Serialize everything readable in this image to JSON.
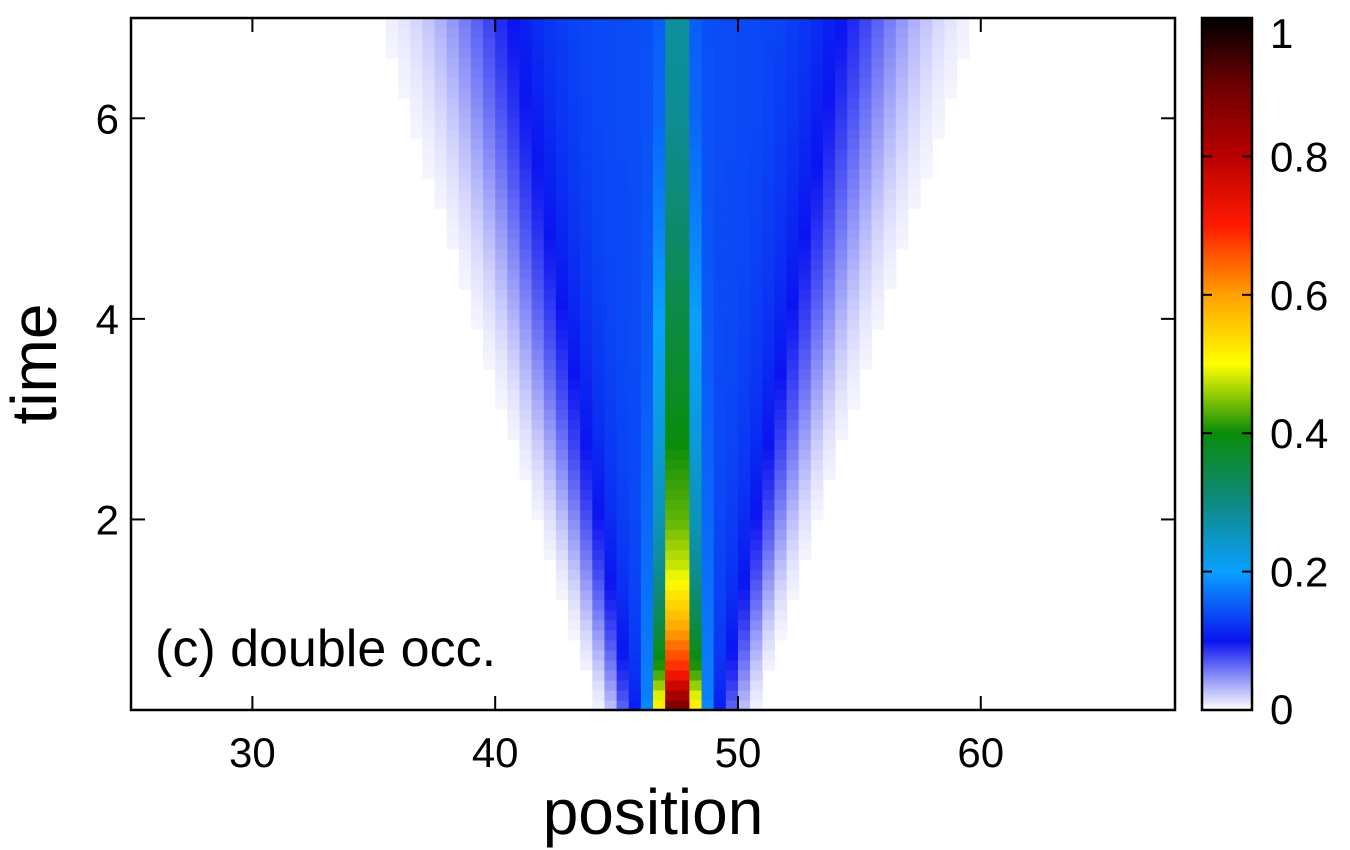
{
  "chart_data": {
    "type": "heatmap",
    "title": "",
    "xlabel": "position",
    "ylabel": "time",
    "annotation": "(c) double occ.",
    "xlim": [
      25,
      68
    ],
    "ylim": [
      0.1,
      7
    ],
    "xticks": [
      30,
      40,
      50,
      60
    ],
    "yticks": [
      2,
      4,
      6
    ],
    "xtick_labels": [
      "30",
      "40",
      "50",
      "60"
    ],
    "ytick_labels": [
      "2",
      "4",
      "6"
    ],
    "colorbar": {
      "range": [
        0,
        1
      ],
      "ticks": [
        0,
        0.2,
        0.4,
        0.6,
        0.8,
        1
      ],
      "tick_labels": [
        "0",
        "0.2",
        "0.4",
        "0.6",
        "0.8",
        "1"
      ],
      "colormap_stops": [
        {
          "value": 0.0,
          "color": "#ffffff"
        },
        {
          "value": 0.1,
          "color": "#0a14f0"
        },
        {
          "value": 0.2,
          "color": "#0aa0ff"
        },
        {
          "value": 0.3,
          "color": "#0e8a82"
        },
        {
          "value": 0.4,
          "color": "#0a8c0a"
        },
        {
          "value": 0.5,
          "color": "#ffff00"
        },
        {
          "value": 0.6,
          "color": "#ffa000"
        },
        {
          "value": 0.7,
          "color": "#ff1a00"
        },
        {
          "value": 0.8,
          "color": "#b80000"
        },
        {
          "value": 0.9,
          "color": "#700000"
        },
        {
          "value": 1.0,
          "color": "#000000"
        }
      ]
    },
    "field": {
      "center": 47.5,
      "bins_x": 86,
      "bins_t": 69,
      "sites": [
        46.5,
        48.5
      ],
      "time_profile": [
        {
          "t": 0.1,
          "value": 0.97
        },
        {
          "t": 0.5,
          "value": 0.75
        },
        {
          "t": 1.0,
          "value": 0.62
        },
        {
          "t": 1.5,
          "value": 0.52
        },
        {
          "t": 2.0,
          "value": 0.47
        },
        {
          "t": 3.0,
          "value": 0.42
        },
        {
          "t": 4.0,
          "value": 0.38
        },
        {
          "t": 5.0,
          "value": 0.34
        },
        {
          "t": 6.0,
          "value": 0.31
        },
        {
          "t": 7.0,
          "value": 0.3
        }
      ]
    }
  }
}
